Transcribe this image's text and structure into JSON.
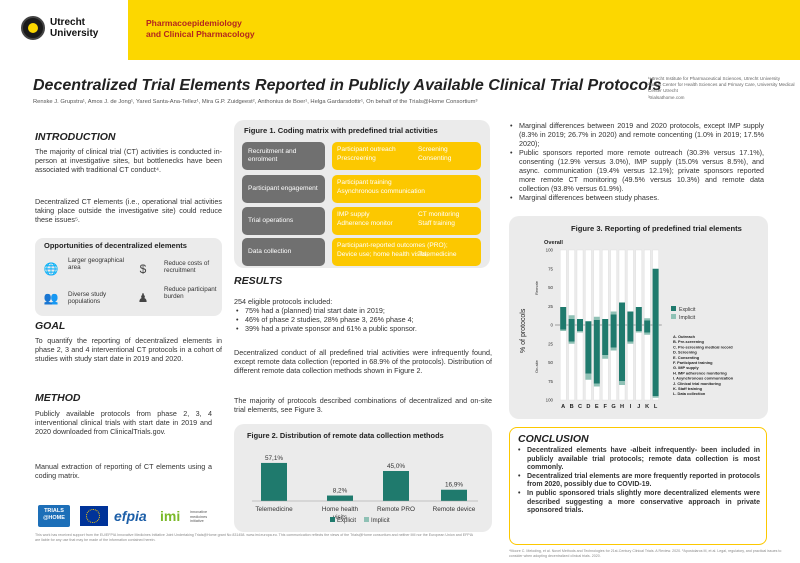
{
  "header": {
    "university_line1": "Utrecht",
    "university_line2": "University",
    "dept_line1": "Pharmacoepidemiology",
    "dept_line2": "and Clinical Pharmacology"
  },
  "title": "Decentralized Trial Elements Reported in Publicly Available Clinical Trial Protocols",
  "authors": "Renske J. Grupstra¹, Amos J. de Jong¹, Yared Santa-Ana-Tellez¹, Mira G.P. Zuidgeest², Anthonius de Boer¹, Helga Gardarsdottir¹, On behalf of the Trials@Home Consortium³",
  "affiliations": [
    "¹Utrecht Institute for Pharmaceutical Sciences, Utrecht University",
    "²Julius Center for Health Sciences and Primary Care, University Medical Center Utrecht",
    "³trialsathome.com"
  ],
  "intro": {
    "heading": "INTRODUCTION",
    "p1": "The majority of clinical trial (CT) activities is conducted in-person at investigative sites, but bottlenecks have been associated with traditional CT conduct⁴.",
    "p2": "Decentralized CT elements (i.e., operational trial activities taking place outside the investigative site) could reduce these issues⁵."
  },
  "opportunities": {
    "title": "Opportunities of decentralized elements",
    "items": [
      "Larger geographical area",
      "Reduce costs of recruitment",
      "Diverse study populations",
      "Reduce participant burden"
    ]
  },
  "goal": {
    "heading": "GOAL",
    "text": "To quantify the reporting of decentralized elements in phase 2, 3 and 4 interventional CT protocols in a cohort of studies with study start date in 2019 and 2020."
  },
  "method": {
    "heading": "METHOD",
    "p1": "Publicly available protocols from phase 2, 3, 4 interventional clinical trials with start date in 2019 and 2020 downloaded from ClinicalTrials.gov.",
    "p2": "Manual extraction of reporting of CT elements using a coding matrix."
  },
  "fig1": {
    "title": "Figure 1. Coding matrix with predefined trial activities",
    "rows": [
      {
        "label": "Recruitment and enrolment",
        "a": "Participant outreach",
        "b": "Screening",
        "c": "Prescreening",
        "d": "Consenting"
      },
      {
        "label": "Participant engagement",
        "a": "Participant training",
        "b": "",
        "c": "Asynchronous communication",
        "d": ""
      },
      {
        "label": "Trial operations",
        "a": "IMP supply",
        "b": "CT monitoring",
        "c": "Adherence monitor",
        "d": "Staff training"
      },
      {
        "label": "Data collection",
        "a": "Participant-reported outcomes (PRO);",
        "b": "",
        "c": "Device use; home health visits;",
        "d": "Telemedicine"
      }
    ]
  },
  "results": {
    "heading": "RESULTS",
    "intro": "254 eligible protocols included:",
    "bullets": [
      "75% had a (planned) trial start date in 2019;",
      "46% of phase 2 studies, 28% phase 3, 26% phase 4;",
      "39% had a private sponsor and 61% a public sponsor."
    ],
    "p2": "Decentralized conduct of all predefined trial activities were infrequently found, except remote data collection (reported in 68.9% of the protocols). Distribution of different remote data collection methods shown in Figure 2.",
    "p3": "The majority of protocols described combinations of decentralized and on-site trial elements, see Figure 3."
  },
  "right_bullets": [
    "Marginal differences between 2019 and 2020 protocols, except IMP supply (8.3% in 2019; 26.7% in 2020) and remote concenting (1.0% in 2019; 17.5% 2020);",
    "Public sponsors reported more remote outreach (30.3% versus 17.1%), consenting (12.9% versus 3.0%), IMP supply (15.0% versus 8.5%), and async. communication (19.4% versus 12.1%); private sponsors reported more remote CT monitoring (49.5% versus 10.3%) and remote data collection (93.8% versus 61.9%).",
    "Marginal differences between study phases."
  ],
  "fig2": {
    "title": "Figure 2. Distribution of remote data collection methods",
    "legend_explicit": "Explicit",
    "legend_implicit": "Implicit"
  },
  "fig3": {
    "title": "Figure 3. Reporting of predefined trial elements",
    "overall": "Overall",
    "remote": "Remote",
    "onsite": "On-site",
    "legend_explicit": "Explicit",
    "legend_implicit": "Implicit",
    "key": [
      "A. Outreach",
      "B. Pre-screening",
      "C. Pre-screening medical record",
      "D. Screening",
      "E. Consenting",
      "F. Participant training",
      "G. IMP supply",
      "H. IMP adherence monitoring",
      "I. Asynchronous communication",
      "J. Clinical trial monitoring",
      "K. Staff training",
      "L. Data collection"
    ]
  },
  "conclusion": {
    "heading": "CONCLUSION",
    "bullets": [
      "Decentralized elements have -albeit infrequently- been included in publicly available trial protocols; remote data collection is most commonly.",
      "Decentralized trial elements are more frequently reported in protocols from 2020, possibly due to COVID-19.",
      "In public sponsored trials slightly more decentralized elements were described suggesting a more conservative approach in private sponsored trials."
    ]
  },
  "footer": {
    "funding": "This work has received support from the EU/EFPIA Innovative Medicines Initiative Joint Undertaking Trials@Home grant No 831458. www.imi.europa.eu. This communication reflects the views of the Trials@Home consortium and neither IMI nor the European Union and EFPIA are liable for any use that may be made of the information contained herein.",
    "refs": "⁴Moore C. Meloding, et al. Novel Methods and Technologies for 21st-Century Clinical Trials. A Review. 2020. ⁵Apostolaros M, et al. Legal, regulatory, and practical issues to consider when adopting decentralized clinical trials. 2020.",
    "logos": {
      "trials1": "TRIALS",
      "trials2": "@HOME",
      "efpia": "efpia",
      "imi": "imi",
      "imi_sub": "innovative medicines initiative"
    }
  },
  "chart_data": [
    {
      "type": "bar",
      "title": "Figure 2. Distribution of remote data collection methods",
      "categories": [
        "Telemedicine",
        "Home health visits",
        "Remote PRO",
        "Remote device"
      ],
      "series": [
        {
          "name": "Explicit",
          "values": [
            57.1,
            8.2,
            45.0,
            16.9
          ]
        }
      ],
      "value_labels": [
        "57,1%",
        "8,2%",
        "45,0%",
        "16,9%"
      ],
      "ylim": [
        0,
        60
      ]
    },
    {
      "type": "bar",
      "title": "Figure 3. Reporting of predefined trial elements",
      "subtitle": "Overall",
      "ylabel": "% of protocols",
      "categories": [
        "A",
        "B",
        "C",
        "D",
        "E",
        "F",
        "G",
        "H",
        "I",
        "J",
        "K",
        "L"
      ],
      "y_ticks": [
        "100",
        "75",
        "50",
        "25",
        "0",
        "25",
        "50",
        "75",
        "100"
      ],
      "ylim": [
        -100,
        100
      ],
      "series": [
        {
          "name": "Remote explicit",
          "values": [
            24,
            8,
            8,
            5,
            7,
            8,
            14,
            30,
            18,
            24,
            6,
            75
          ]
        },
        {
          "name": "Remote implicit",
          "values": [
            0,
            5,
            0,
            0,
            4,
            0,
            4,
            0,
            0,
            0,
            3,
            0
          ]
        },
        {
          "name": "On-site explicit",
          "values": [
            -6,
            -22,
            -8,
            -65,
            -78,
            -40,
            -30,
            -75,
            -22,
            -8,
            -10,
            -95
          ]
        },
        {
          "name": "On-site implicit",
          "values": [
            -2,
            -3,
            -2,
            -8,
            -4,
            -5,
            -4,
            -5,
            -3,
            -2,
            -3,
            -2
          ]
        }
      ]
    }
  ]
}
